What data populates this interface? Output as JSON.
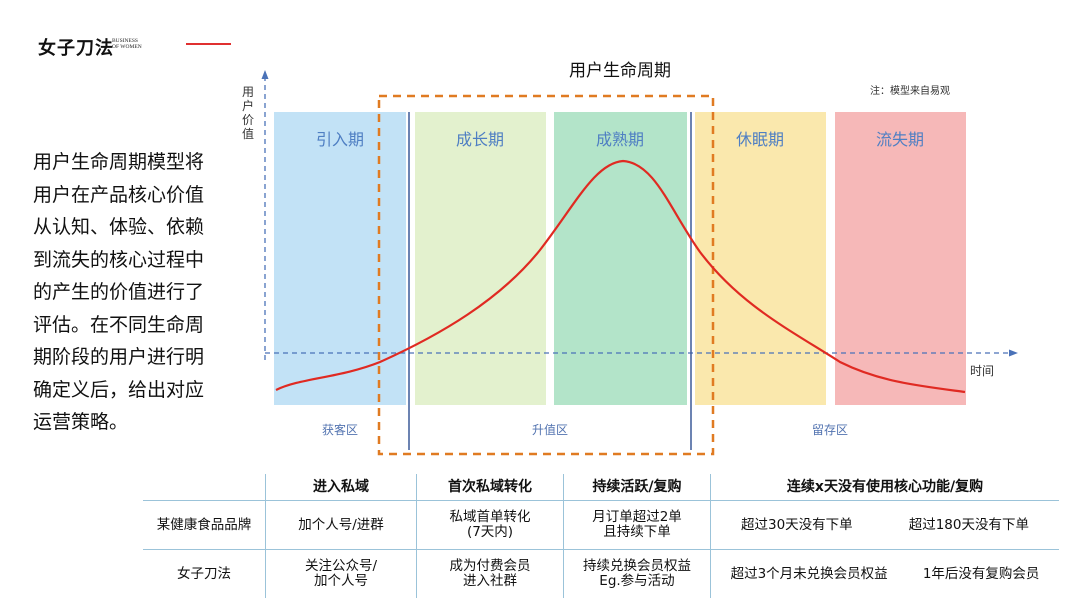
{
  "logo": {
    "name": "女子刀法",
    "sub_line1": "BUSINESS",
    "sub_line2": "OF WOMEN"
  },
  "side_text": "用户生命周期模型将用户在产品核心价值从认知、体验、依赖到流失的核心过程中的产生的价值进行了评估。在不同生命周期阶段的用户进行明确定义后，给出对应运营策略。",
  "diagram": {
    "title": "用户生命周期",
    "note": "注：模型来自易观",
    "y_axis_label": "用户价值",
    "x_axis_label": "时间",
    "stages": [
      {
        "label": "引入期",
        "color": "#c2e2f6"
      },
      {
        "label": "成长期",
        "color": "#e3f1ce"
      },
      {
        "label": "成熟期",
        "color": "#b3e4c9"
      },
      {
        "label": "休眠期",
        "color": "#fae8ad"
      },
      {
        "label": "流失期",
        "color": "#f6b8b8"
      }
    ],
    "zones": [
      "获客区",
      "升值区",
      "留存区"
    ],
    "colors": {
      "curve": "#e02a22",
      "axis": "#4a72b8",
      "dashed_box": "#e07b22",
      "stage_label": "#4f7fc3",
      "zone_label": "#5273b0"
    }
  },
  "table": {
    "headers": [
      "",
      "进入私域",
      "首次私域转化",
      "持续活跃/复购",
      "连续x天没有使用核心功能/复购"
    ],
    "rows": [
      {
        "name": "某健康食品品牌",
        "c1": "加个人号/进群",
        "c2a": "私域首单转化",
        "c2b": "(7天内)",
        "c3a": "月订单超过2单",
        "c3b": "且持续下单",
        "c4a": "超过30天没有下单",
        "c4b": "超过180天没有下单"
      },
      {
        "name": "女子刀法",
        "c1a": "关注公众号/",
        "c1b": "加个人号",
        "c2a": "成为付费会员",
        "c2b": "进入社群",
        "c3a": "持续兑换会员权益",
        "c3b": "Eg.参与活动",
        "c4a": "超过3个月未兑换会员权益",
        "c4b": "1年后没有复购会员"
      }
    ]
  }
}
